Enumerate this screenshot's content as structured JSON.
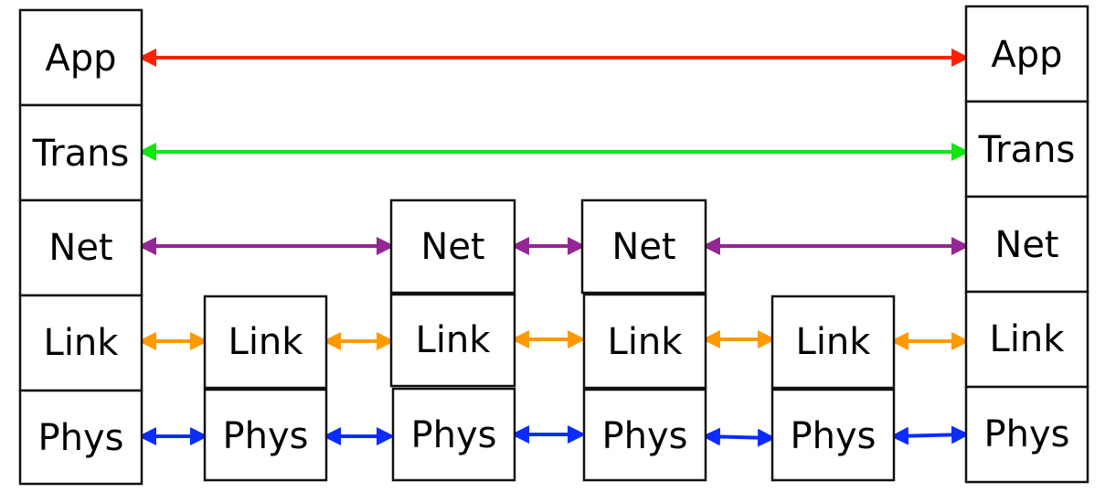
{
  "colors": {
    "app": "#ff2200",
    "trans": "#11e611",
    "net": "#932793",
    "link": "#ff9900",
    "phys": "#0a2cff"
  },
  "stacks": {
    "host_left": {
      "app": "App",
      "trans": "Trans",
      "net": "Net",
      "link": "Link",
      "phys": "Phys"
    },
    "switch_1": {
      "link": "Link",
      "phys": "Phys"
    },
    "router_1": {
      "net": "Net",
      "link": "Link",
      "phys": "Phys"
    },
    "router_2": {
      "net": "Net",
      "link": "Link",
      "phys": "Phys"
    },
    "switch_2": {
      "link": "Link",
      "phys": "Phys"
    },
    "host_right": {
      "app": "App",
      "trans": "Trans",
      "net": "Net",
      "link": "Link",
      "phys": "Phys"
    }
  }
}
